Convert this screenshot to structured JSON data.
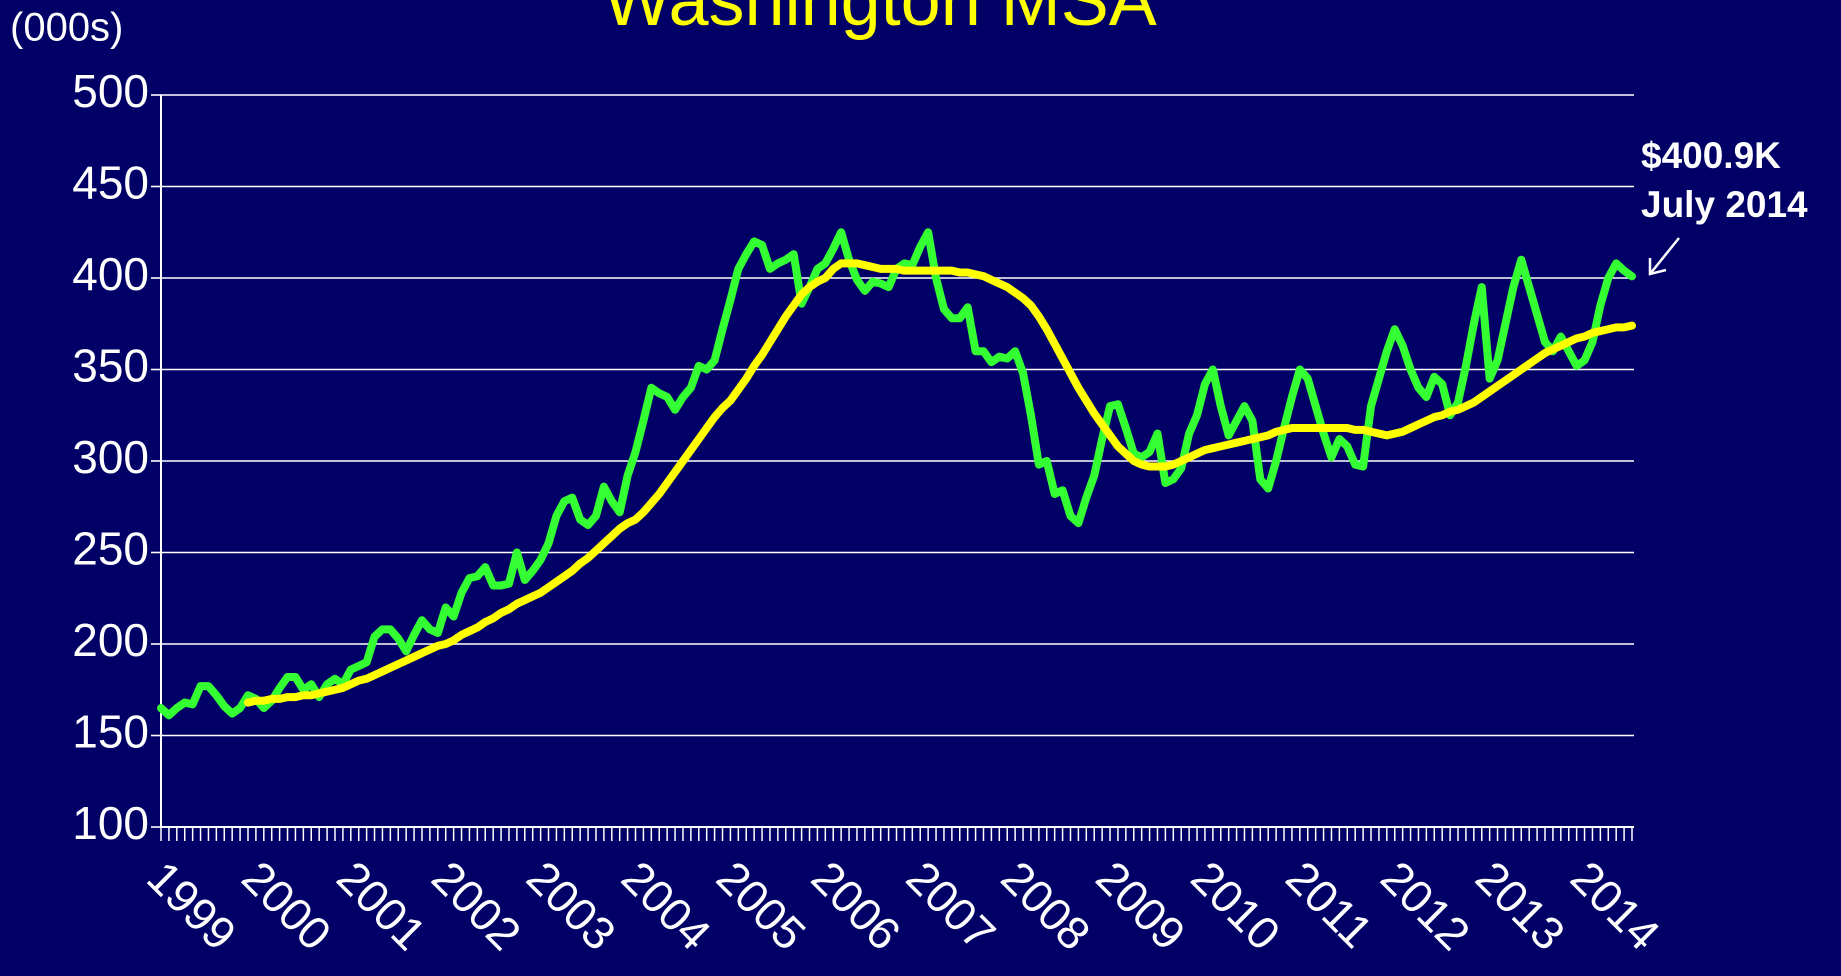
{
  "chart_data": {
    "type": "line",
    "title": "Washington MSA",
    "y_unit_label": "(000s)",
    "annotation": {
      "lines": [
        "$400.9K",
        "July 2014"
      ]
    },
    "categories": [
      "1999",
      null,
      null,
      null,
      null,
      null,
      null,
      null,
      null,
      null,
      null,
      null,
      "2000",
      null,
      null,
      null,
      null,
      null,
      null,
      null,
      null,
      null,
      null,
      null,
      "2001",
      null,
      null,
      null,
      null,
      null,
      null,
      null,
      null,
      null,
      null,
      null,
      "2002",
      null,
      null,
      null,
      null,
      null,
      null,
      null,
      null,
      null,
      null,
      null,
      "2003",
      null,
      null,
      null,
      null,
      null,
      null,
      null,
      null,
      null,
      null,
      null,
      "2004",
      null,
      null,
      null,
      null,
      null,
      null,
      null,
      null,
      null,
      null,
      null,
      "2005",
      null,
      null,
      null,
      null,
      null,
      null,
      null,
      null,
      null,
      null,
      null,
      "2006",
      null,
      null,
      null,
      null,
      null,
      null,
      null,
      null,
      null,
      null,
      null,
      "2007",
      null,
      null,
      null,
      null,
      null,
      null,
      null,
      null,
      null,
      null,
      null,
      "2008",
      null,
      null,
      null,
      null,
      null,
      null,
      null,
      null,
      null,
      null,
      null,
      "2009",
      null,
      null,
      null,
      null,
      null,
      null,
      null,
      null,
      null,
      null,
      null,
      "2010",
      null,
      null,
      null,
      null,
      null,
      null,
      null,
      null,
      null,
      null,
      null,
      "2011",
      null,
      null,
      null,
      null,
      null,
      null,
      null,
      null,
      null,
      null,
      null,
      "2012",
      null,
      null,
      null,
      null,
      null,
      null,
      null,
      null,
      null,
      null,
      null,
      "2013",
      null,
      null,
      null,
      null,
      null,
      null,
      null,
      null,
      null,
      null,
      null,
      "2014",
      null,
      null,
      null,
      null,
      null,
      null
    ],
    "series": [
      {
        "color": "#33ff33",
        "values": [
          165,
          161,
          165,
          168,
          167,
          177,
          177,
          172,
          166,
          162,
          165,
          172,
          170,
          165,
          169,
          176,
          182,
          182,
          175,
          178,
          171,
          178,
          181,
          178,
          186,
          188,
          190,
          204,
          208,
          208,
          203,
          196,
          205,
          213,
          208,
          206,
          220,
          215,
          228,
          236,
          237,
          242,
          232,
          232,
          233,
          250,
          235,
          240,
          246,
          255,
          270,
          278,
          280,
          268,
          265,
          270,
          286,
          278,
          272,
          292,
          305,
          322,
          340,
          337,
          335,
          328,
          335,
          340,
          352,
          350,
          355,
          372,
          388,
          405,
          413,
          420,
          418,
          405,
          408,
          410,
          413,
          386,
          395,
          405,
          408,
          416,
          425,
          410,
          399,
          393,
          398,
          397,
          395,
          405,
          408,
          407,
          417,
          425,
          400,
          383,
          378,
          378,
          384,
          360,
          360,
          354,
          357,
          356,
          360,
          348,
          325,
          298,
          300,
          282,
          284,
          270,
          266,
          280,
          292,
          312,
          330,
          331,
          318,
          304,
          302,
          305,
          315,
          288,
          290,
          296,
          315,
          325,
          342,
          350,
          330,
          314,
          322,
          330,
          322,
          290,
          285,
          300,
          318,
          335,
          350,
          345,
          330,
          315,
          302,
          312,
          308,
          298,
          297,
          330,
          345,
          360,
          372,
          363,
          350,
          340,
          335,
          346,
          342,
          325,
          332,
          352,
          375,
          395,
          345,
          355,
          375,
          395,
          410,
          395,
          380,
          365,
          360,
          368,
          360,
          352,
          355,
          365,
          385,
          400,
          408,
          404,
          400.9
        ]
      },
      {
        "color": "#ffff00",
        "values": [
          null,
          null,
          null,
          null,
          null,
          null,
          null,
          null,
          null,
          null,
          null,
          168,
          169,
          169,
          170,
          170,
          171,
          171,
          172,
          172,
          173,
          174,
          175,
          176,
          178,
          180,
          181,
          183,
          185,
          187,
          189,
          191,
          193,
          195,
          197,
          199,
          200,
          202,
          205,
          207,
          209,
          212,
          214,
          217,
          219,
          222,
          224,
          226,
          228,
          231,
          234,
          237,
          240,
          244,
          247,
          251,
          255,
          259,
          263,
          266,
          268,
          272,
          277,
          282,
          288,
          294,
          300,
          306,
          312,
          318,
          324,
          329,
          333,
          339,
          345,
          352,
          358,
          365,
          372,
          379,
          385,
          391,
          395,
          398,
          400,
          405,
          408,
          408,
          408,
          407,
          406,
          405,
          405,
          405,
          404,
          404,
          404,
          404,
          404,
          404,
          404,
          403,
          403,
          402,
          401,
          399,
          397,
          395,
          392,
          389,
          385,
          379,
          372,
          364,
          356,
          348,
          340,
          333,
          326,
          320,
          314,
          308,
          304,
          300,
          298,
          297,
          297,
          297,
          298,
          300,
          302,
          304,
          306,
          307,
          308,
          309,
          310,
          311,
          312,
          313,
          314,
          316,
          317,
          318,
          318,
          318,
          318,
          318,
          318,
          318,
          318,
          317,
          317,
          316,
          315,
          314,
          315,
          316,
          318,
          320,
          322,
          324,
          325,
          327,
          328,
          330,
          332,
          335,
          338,
          341,
          344,
          347,
          350,
          353,
          356,
          359,
          361,
          363,
          365,
          367,
          368,
          370,
          371,
          372,
          373,
          373,
          374
        ]
      }
    ],
    "ylim": [
      100,
      500
    ],
    "yticks": [
      100,
      150,
      200,
      250,
      300,
      350,
      400,
      450,
      500
    ],
    "grid": true
  }
}
